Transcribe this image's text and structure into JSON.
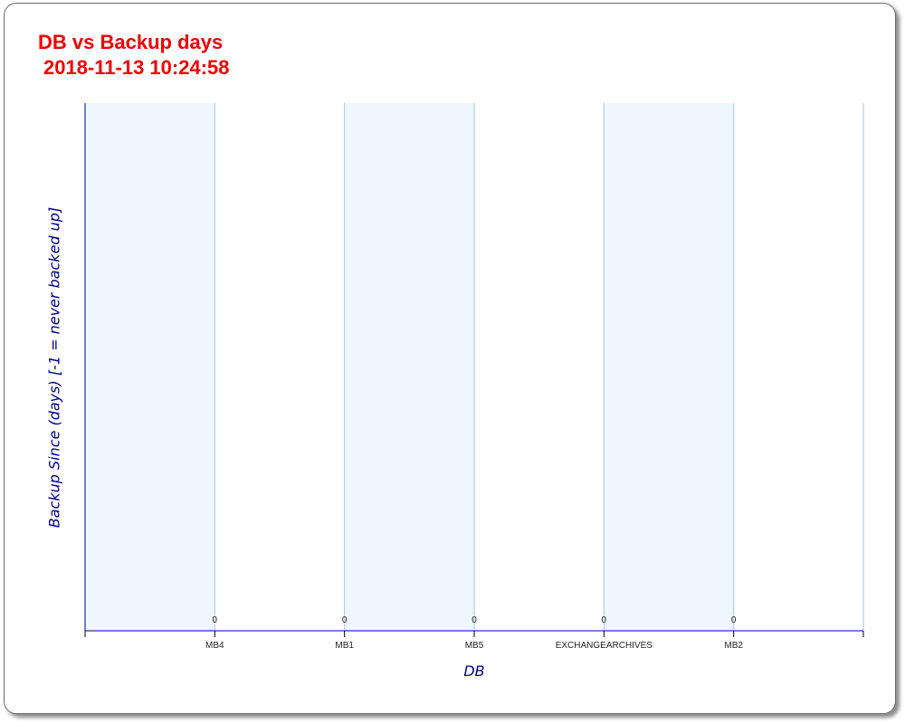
{
  "chart_data": {
    "type": "bar",
    "title": "DB vs Backup days",
    "subtitle": "2018-11-13 10:24:58",
    "xlabel": "DB",
    "ylabel": "Backup Since (days) [-1 = never backed up]",
    "categories": [
      "MB4",
      "MB1",
      "MB5",
      "EXCHANGEARCHIVES",
      "MB2"
    ],
    "values": [
      0,
      0,
      0,
      0,
      0
    ],
    "data_labels": [
      "0",
      "0",
      "0",
      "0",
      "0"
    ],
    "grid": true,
    "colors": {
      "title": "#ee0000",
      "axis": "#00008b",
      "band": "#eef6fe",
      "gridline": "#a9c6da"
    }
  }
}
